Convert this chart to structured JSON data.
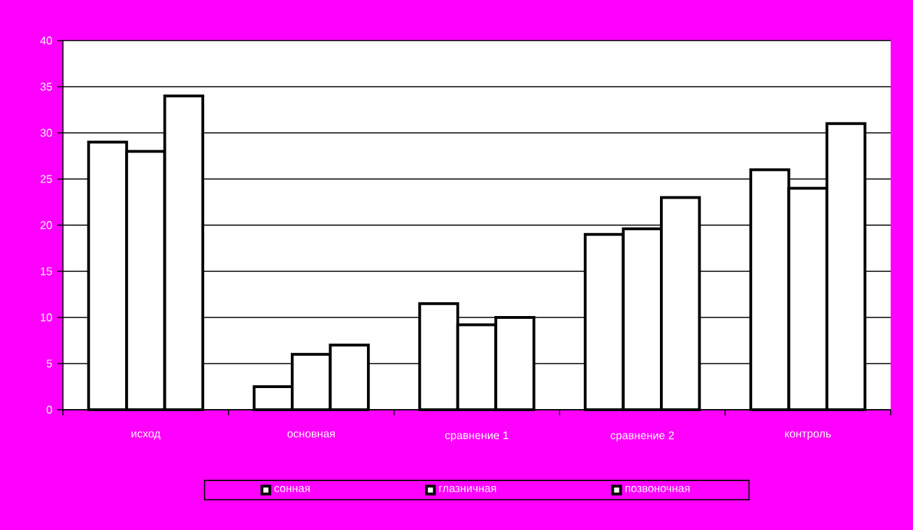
{
  "chart_data": {
    "type": "bar",
    "categories": [
      "исход",
      "основная",
      "сравнение 1",
      "сравнение 2",
      "контроль"
    ],
    "series": [
      {
        "name": "сонная",
        "color": "#ffffff",
        "values": [
          29,
          2.5,
          11.5,
          19,
          26
        ]
      },
      {
        "name": "глазничная",
        "color": "#ffffff",
        "values": [
          28,
          6,
          9.2,
          19.6,
          24
        ]
      },
      {
        "name": "позвоночная",
        "color": "#ffffff",
        "values": [
          34,
          7,
          10,
          23,
          31
        ]
      }
    ],
    "ylim": [
      0,
      40
    ],
    "yticks": [
      0,
      5,
      10,
      15,
      20,
      25,
      30,
      35,
      40
    ],
    "grid": "y",
    "legend": "bottom"
  }
}
